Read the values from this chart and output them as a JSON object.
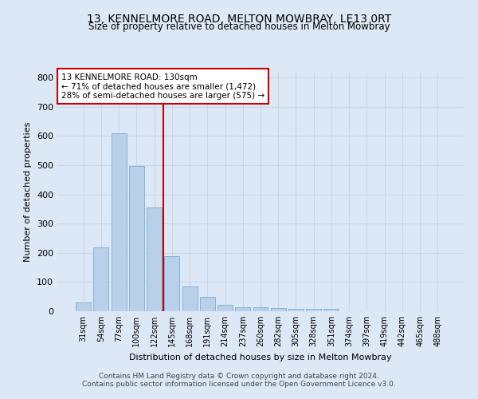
{
  "title1": "13, KENNELMORE ROAD, MELTON MOWBRAY, LE13 0RT",
  "title2": "Size of property relative to detached houses in Melton Mowbray",
  "xlabel": "Distribution of detached houses by size in Melton Mowbray",
  "ylabel": "Number of detached properties",
  "categories": [
    "31sqm",
    "54sqm",
    "77sqm",
    "100sqm",
    "122sqm",
    "145sqm",
    "168sqm",
    "191sqm",
    "214sqm",
    "237sqm",
    "260sqm",
    "282sqm",
    "305sqm",
    "328sqm",
    "351sqm",
    "374sqm",
    "397sqm",
    "419sqm",
    "442sqm",
    "465sqm",
    "488sqm"
  ],
  "values": [
    30,
    218,
    610,
    498,
    354,
    188,
    85,
    50,
    23,
    15,
    14,
    10,
    8,
    8,
    8,
    0,
    0,
    0,
    0,
    0,
    0
  ],
  "bar_color": "#b8d0ea",
  "bar_edge_color": "#7aafd4",
  "grid_color": "#c8d8e8",
  "background_color": "#dce8f5",
  "vline_color": "#cc0000",
  "annotation_text": "13 KENNELMORE ROAD: 130sqm\n← 71% of detached houses are smaller (1,472)\n28% of semi-detached houses are larger (575) →",
  "annotation_box_color": "#ffffff",
  "annotation_box_edge": "#cc0000",
  "footer1": "Contains HM Land Registry data © Crown copyright and database right 2024.",
  "footer2": "Contains public sector information licensed under the Open Government Licence v3.0.",
  "ylim": [
    0,
    820
  ],
  "yticks": [
    0,
    100,
    200,
    300,
    400,
    500,
    600,
    700,
    800
  ]
}
